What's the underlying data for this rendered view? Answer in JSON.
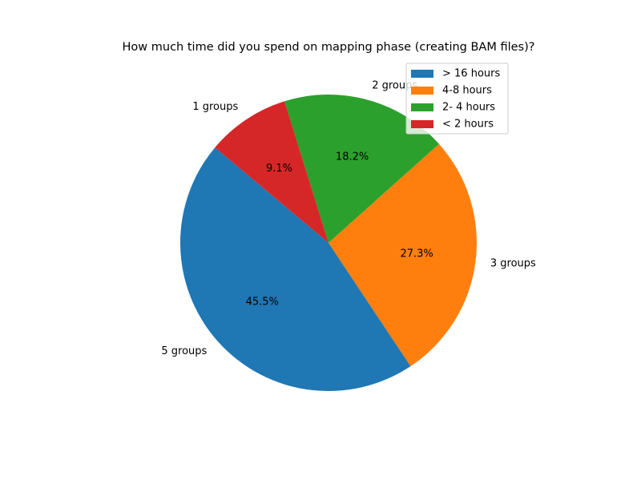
{
  "chart_data": {
    "type": "pie",
    "title": "How much time did you spend on mapping phase (creating BAM files)?",
    "slices": [
      {
        "label": "> 16 hours",
        "value": 5,
        "value_label": "5 groups",
        "percent_label": "45.5%",
        "color": "#1f77b4"
      },
      {
        "label": "4-8 hours",
        "value": 3,
        "value_label": "3 groups",
        "percent_label": "27.3%",
        "color": "#ff7f0e"
      },
      {
        "label": "2- 4 hours",
        "value": 2,
        "value_label": "2 groups",
        "percent_label": "18.2%",
        "color": "#2ca02c"
      },
      {
        "label": "< 2 hours",
        "value": 1,
        "value_label": "1 groups",
        "percent_label": "9.1%",
        "color": "#d62728"
      }
    ],
    "legend_position": "top-right",
    "start_angle_deg": 140,
    "direction": "counterclockwise"
  }
}
